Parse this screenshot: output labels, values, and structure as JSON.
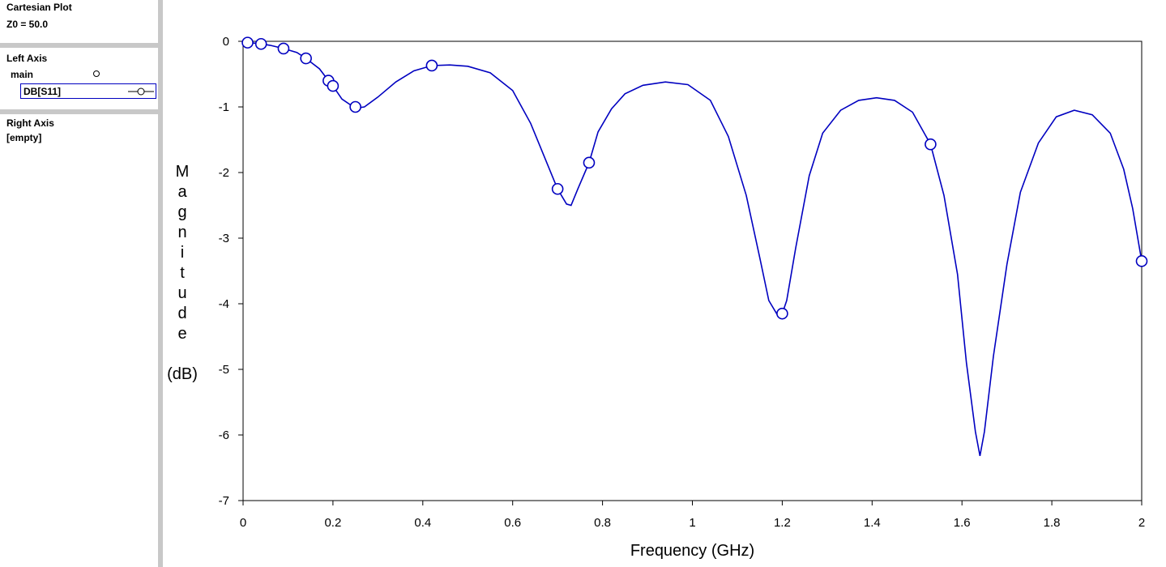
{
  "sidebar": {
    "title": "Cartesian Plot",
    "z0": "Z0 = 50.0",
    "left_axis": {
      "heading": "Left Axis",
      "group": "main",
      "trace": "DB[S11]"
    },
    "right_axis": {
      "heading": "Right Axis",
      "value": "[empty]"
    }
  },
  "colors": {
    "trace": "#0000c0",
    "frame": "#c8c8c8"
  },
  "chart_data": {
    "type": "line",
    "title": "",
    "xlabel": "Frequency (GHz)",
    "ylabel_letters": [
      "M",
      "a",
      "g",
      "n",
      "i",
      "t",
      "u",
      "d",
      "e"
    ],
    "ylabel_unit": "(dB)",
    "xlim": [
      0,
      2
    ],
    "ylim": [
      -7,
      0
    ],
    "xticks": [
      "0",
      "0.2",
      "0.4",
      "0.6",
      "0.8",
      "1",
      "1.2",
      "1.4",
      "1.6",
      "1.8",
      "2"
    ],
    "yticks": [
      "0",
      "-1",
      "-2",
      "-3",
      "-4",
      "-5",
      "-6",
      "-7"
    ],
    "grid": false,
    "series": [
      {
        "name": "DB[S11]",
        "color": "#0000c0",
        "marker": "circle",
        "curve": [
          [
            0.0,
            -0.02
          ],
          [
            0.01,
            -0.02
          ],
          [
            0.03,
            -0.03
          ],
          [
            0.06,
            -0.06
          ],
          [
            0.09,
            -0.11
          ],
          [
            0.12,
            -0.17
          ],
          [
            0.14,
            -0.26
          ],
          [
            0.17,
            -0.42
          ],
          [
            0.19,
            -0.6
          ],
          [
            0.2,
            -0.68
          ],
          [
            0.22,
            -0.88
          ],
          [
            0.25,
            -1.02
          ],
          [
            0.27,
            -1.0
          ],
          [
            0.3,
            -0.85
          ],
          [
            0.34,
            -0.62
          ],
          [
            0.38,
            -0.45
          ],
          [
            0.42,
            -0.37
          ],
          [
            0.46,
            -0.36
          ],
          [
            0.5,
            -0.38
          ],
          [
            0.55,
            -0.48
          ],
          [
            0.6,
            -0.75
          ],
          [
            0.64,
            -1.25
          ],
          [
            0.67,
            -1.75
          ],
          [
            0.7,
            -2.25
          ],
          [
            0.72,
            -2.48
          ],
          [
            0.73,
            -2.5
          ],
          [
            0.745,
            -2.25
          ],
          [
            0.77,
            -1.85
          ],
          [
            0.79,
            -1.38
          ],
          [
            0.82,
            -1.03
          ],
          [
            0.85,
            -0.8
          ],
          [
            0.89,
            -0.67
          ],
          [
            0.94,
            -0.62
          ],
          [
            0.99,
            -0.66
          ],
          [
            1.04,
            -0.9
          ],
          [
            1.08,
            -1.45
          ],
          [
            1.12,
            -2.35
          ],
          [
            1.15,
            -3.3
          ],
          [
            1.17,
            -3.95
          ],
          [
            1.19,
            -4.18
          ],
          [
            1.2,
            -4.15
          ],
          [
            1.21,
            -3.95
          ],
          [
            1.23,
            -3.15
          ],
          [
            1.26,
            -2.05
          ],
          [
            1.29,
            -1.4
          ],
          [
            1.33,
            -1.05
          ],
          [
            1.37,
            -0.9
          ],
          [
            1.41,
            -0.86
          ],
          [
            1.45,
            -0.9
          ],
          [
            1.49,
            -1.08
          ],
          [
            1.53,
            -1.57
          ],
          [
            1.56,
            -2.35
          ],
          [
            1.59,
            -3.55
          ],
          [
            1.61,
            -4.9
          ],
          [
            1.63,
            -5.95
          ],
          [
            1.64,
            -6.32
          ],
          [
            1.65,
            -5.95
          ],
          [
            1.67,
            -4.8
          ],
          [
            1.7,
            -3.4
          ],
          [
            1.73,
            -2.3
          ],
          [
            1.77,
            -1.55
          ],
          [
            1.81,
            -1.15
          ],
          [
            1.85,
            -1.05
          ],
          [
            1.89,
            -1.12
          ],
          [
            1.93,
            -1.4
          ],
          [
            1.96,
            -1.95
          ],
          [
            1.98,
            -2.55
          ],
          [
            2.0,
            -3.35
          ]
        ],
        "markers": [
          [
            0.01,
            -0.02
          ],
          [
            0.04,
            -0.04
          ],
          [
            0.09,
            -0.11
          ],
          [
            0.14,
            -0.26
          ],
          [
            0.19,
            -0.6
          ],
          [
            0.2,
            -0.68
          ],
          [
            0.25,
            -1.0
          ],
          [
            0.42,
            -0.37
          ],
          [
            0.7,
            -2.25
          ],
          [
            0.77,
            -1.85
          ],
          [
            1.2,
            -4.15
          ],
          [
            1.53,
            -1.57
          ],
          [
            2.0,
            -3.35
          ]
        ]
      }
    ]
  }
}
